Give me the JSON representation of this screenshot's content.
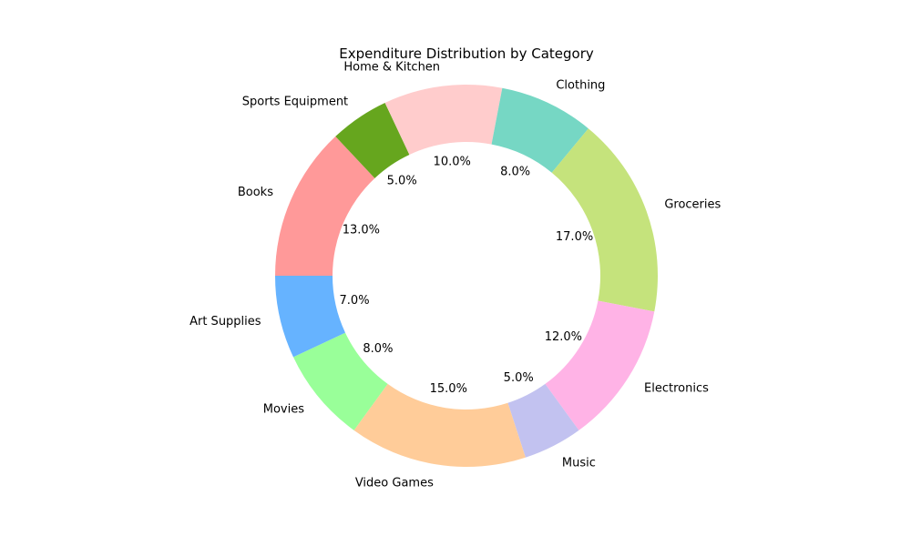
{
  "chart_data": {
    "type": "pie",
    "style": "donut",
    "title": "Expenditure Distribution by Category",
    "start_angle_deg": 180,
    "direction": "clockwise",
    "categories": [
      "Books",
      "Sports Equipment",
      "Home & Kitchen",
      "Clothing",
      "Groceries",
      "Electronics",
      "Music",
      "Video Games",
      "Movies",
      "Art Supplies"
    ],
    "values": [
      13.0,
      5.0,
      10.0,
      8.0,
      17.0,
      12.0,
      5.0,
      15.0,
      8.0,
      7.0
    ],
    "value_labels": [
      "13.0%",
      "5.0%",
      "10.0%",
      "8.0%",
      "17.0%",
      "12.0%",
      "5.0%",
      "15.0%",
      "8.0%",
      "7.0%"
    ],
    "colors": [
      "#ff9999",
      "#66a61e",
      "#ffcccc",
      "#76d7c4",
      "#c5e37c",
      "#ffb3e6",
      "#c2c2f0",
      "#ffcc99",
      "#99ff99",
      "#66b3ff"
    ]
  }
}
